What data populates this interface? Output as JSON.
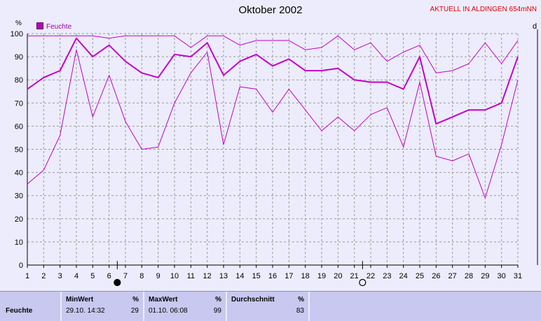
{
  "header": {
    "title": "Oktober 2002",
    "station": "AKTUELL IN ALDINGEN 654mNN",
    "left_unit": "%",
    "right_unit": "d"
  },
  "colors": {
    "series": "#c400c8",
    "grid": "#999999",
    "background": "#ececfc",
    "station_text": "#e00000"
  },
  "chart_data": {
    "type": "line",
    "title": "Oktober 2002",
    "xlabel": "",
    "ylabel": "%",
    "xlim": [
      1,
      31
    ],
    "ylim": [
      0,
      100
    ],
    "x": [
      1,
      2,
      3,
      4,
      5,
      6,
      7,
      8,
      9,
      10,
      11,
      12,
      13,
      14,
      15,
      16,
      17,
      18,
      19,
      20,
      21,
      22,
      23,
      24,
      25,
      26,
      27,
      28,
      29,
      30,
      31
    ],
    "xticks": [
      1,
      2,
      3,
      4,
      5,
      6,
      7,
      8,
      9,
      10,
      11,
      12,
      13,
      14,
      15,
      16,
      17,
      18,
      19,
      20,
      21,
      22,
      23,
      24,
      25,
      26,
      27,
      28,
      29,
      30,
      31
    ],
    "yticks": [
      0,
      10,
      20,
      30,
      40,
      50,
      60,
      70,
      80,
      90,
      100
    ],
    "grid": true,
    "legend_position": "top-left",
    "legend": [
      "Feuchte"
    ],
    "series": [
      {
        "name": "Feuchte",
        "role": "mean",
        "values": [
          76,
          81,
          84,
          98,
          90,
          95,
          88,
          83,
          81,
          91,
          90,
          96,
          82,
          88,
          91,
          86,
          89,
          84,
          84,
          85,
          80,
          79,
          79,
          76,
          90,
          61,
          64,
          67,
          67,
          70,
          90
        ]
      },
      {
        "role": "max",
        "values": [
          99,
          99,
          99,
          99,
          99,
          98,
          99,
          99,
          99,
          99,
          94,
          99,
          99,
          95,
          97,
          97,
          97,
          93,
          94,
          99,
          93,
          96,
          88,
          92,
          95,
          83,
          84,
          87,
          96,
          87,
          97
        ]
      },
      {
        "role": "min",
        "values": [
          35,
          41,
          56,
          93,
          64,
          82,
          62,
          50,
          51,
          70,
          83,
          92,
          52,
          77,
          76,
          66,
          76,
          67,
          58,
          64,
          58,
          65,
          68,
          51,
          79,
          47,
          45,
          48,
          29,
          52,
          80
        ]
      }
    ],
    "moon_phases": [
      {
        "day": 6.5,
        "phase": "new moon"
      },
      {
        "day": 21.5,
        "phase": "full moon"
      }
    ]
  },
  "stats": {
    "row_label": "Feuchte",
    "min": {
      "label": "MinWert",
      "unit": "%",
      "date": "29.10. 14:32",
      "value": "29"
    },
    "max": {
      "label": "MaxWert",
      "unit": "%",
      "date": "01.10. 06:08",
      "value": "99"
    },
    "avg": {
      "label": "Durchschnitt",
      "unit": "%",
      "value": "83"
    }
  }
}
